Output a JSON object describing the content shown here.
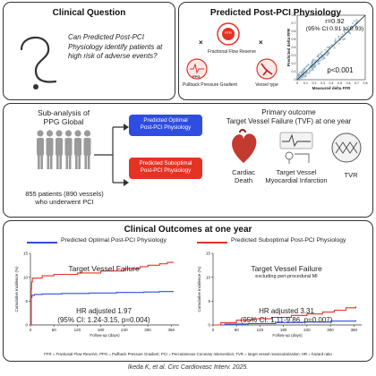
{
  "clinical_question": {
    "title": "Clinical Question",
    "question": "Can Predicted Post-PCI Physiology identify patients at high risk of adverse events?"
  },
  "predicted_physiology": {
    "title": "Predicted Post-PCI Physiology",
    "ffr_label": "Fractional Flow Reserve",
    "ppg_label": "Pullback Pressure Gradient",
    "vessel_label": "Vessel type",
    "ppg_icon_text": "PPG",
    "ffr_icon_text": "FFR",
    "operator": "×",
    "scatter": {
      "r_text": "r=0.92",
      "ci_text": "(95% CI 0.91 to 0.93)",
      "p_text": "p<0.001",
      "xlabel": "Measured delta FFR",
      "ylabel": "Predicted delta FFR",
      "xticks": [
        "0",
        "0.1",
        "0.2",
        "0.3",
        "0.4",
        "0.5",
        "0.6",
        "0.7",
        "0.8"
      ],
      "yticks": [
        "0",
        "0.1",
        "0.2",
        "0.3",
        "0.4",
        "0.5",
        "0.6",
        "0.7",
        "0.8"
      ]
    }
  },
  "study": {
    "subanalysis": "Sub-analysis of\nPPG Global",
    "patients": "855 patients (890 vessels)\nwho underwent PCI",
    "optimal_label": "Predicted Optimal\nPost-PCI Physiology",
    "suboptimal_label": "Predicted Suboptimal\nPost-PCI Physiology",
    "primary_title": "Primary outcome",
    "primary_sub": "Target Vessel Failure (TVF) at one year",
    "outcomes": [
      "Cardiac\nDeath",
      "Target Vessel\nMyocardial Infarction",
      "TVR"
    ]
  },
  "clinical_outcomes": {
    "title": "Clinical Outcomes at one year",
    "legend": [
      "Predicted Optimal Post-PCI Physiology",
      "Predicted Suboptimal Post-PCI Physiology"
    ],
    "footnote": "FFR = Fractional Flow Reserve; PPG = Pullback Pressure Gradient; PCI = Percutaneous Coronary Intervention; TVR = target vessel revascularization; HR = hazard ratio",
    "left": {
      "title": "Target Vessel Failure",
      "subtitle": "",
      "hr": "HR adjusted 1.97",
      "ci": "(95% CI: 1.24-3.15, p=0.004)"
    },
    "right": {
      "title": "Target Vessel Failure",
      "subtitle": "excluding peri-procedural MI",
      "hr": "HR adjusted 3.31",
      "ci": "(95% CI: 1.11-9.86, p=0.007)"
    }
  },
  "citation": "Ikeda K, et al. Circ Cardiovasc Interv. 2025.",
  "colors": {
    "optimal": "#2f4de0",
    "suboptimal": "#e53323",
    "scatter": "#8fb3c9"
  },
  "chart_data": [
    {
      "type": "line",
      "title": "Target Vessel Failure",
      "xlabel": "Follow-up (days)",
      "ylabel": "Cumulative incidence (%)",
      "xlim": [
        0,
        380
      ],
      "ylim": [
        0,
        15
      ],
      "xticks": [
        0,
        60,
        120,
        180,
        240,
        300,
        360
      ],
      "yticks": [
        0,
        5,
        10,
        15
      ],
      "series": [
        {
          "name": "Predicted Optimal Post-PCI Physiology",
          "x": [
            0,
            2,
            4,
            10,
            30,
            80,
            150,
            220,
            290,
            330,
            365
          ],
          "y": [
            0,
            5.8,
            6.2,
            6.4,
            6.5,
            6.6,
            6.7,
            6.8,
            6.9,
            7.0,
            7.1
          ]
        },
        {
          "name": "Predicted Suboptimal Post-PCI Physiology",
          "x": [
            0,
            2,
            3,
            5,
            30,
            60,
            120,
            180,
            240,
            280,
            300,
            330,
            350,
            365
          ],
          "y": [
            0,
            7.5,
            9.0,
            9.8,
            10.3,
            10.6,
            10.9,
            11.3,
            11.8,
            12.2,
            12.5,
            12.8,
            13.1,
            13.2
          ]
        }
      ]
    },
    {
      "type": "line",
      "title": "Target Vessel Failure",
      "subtitle": "excluding peri-procedural MI",
      "xlabel": "Follow-up (days)",
      "ylabel": "Cumulative incidence (%)",
      "xlim": [
        0,
        380
      ],
      "ylim": [
        0,
        15
      ],
      "xticks": [
        0,
        60,
        120,
        180,
        240,
        300,
        360
      ],
      "yticks": [
        0,
        5,
        10,
        15
      ],
      "series": [
        {
          "name": "Predicted Optimal Post-PCI Physiology",
          "x": [
            0,
            30,
            90,
            160,
            230,
            300,
            365
          ],
          "y": [
            0,
            0.2,
            0.3,
            0.5,
            0.6,
            0.8,
            1.0
          ]
        },
        {
          "name": "Predicted Suboptimal Post-PCI Physiology",
          "x": [
            0,
            20,
            60,
            100,
            150,
            200,
            240,
            280,
            310,
            340,
            365
          ],
          "y": [
            0,
            0.5,
            1.0,
            1.3,
            1.6,
            2.0,
            2.3,
            2.7,
            3.1,
            3.6,
            3.9
          ]
        }
      ]
    }
  ]
}
